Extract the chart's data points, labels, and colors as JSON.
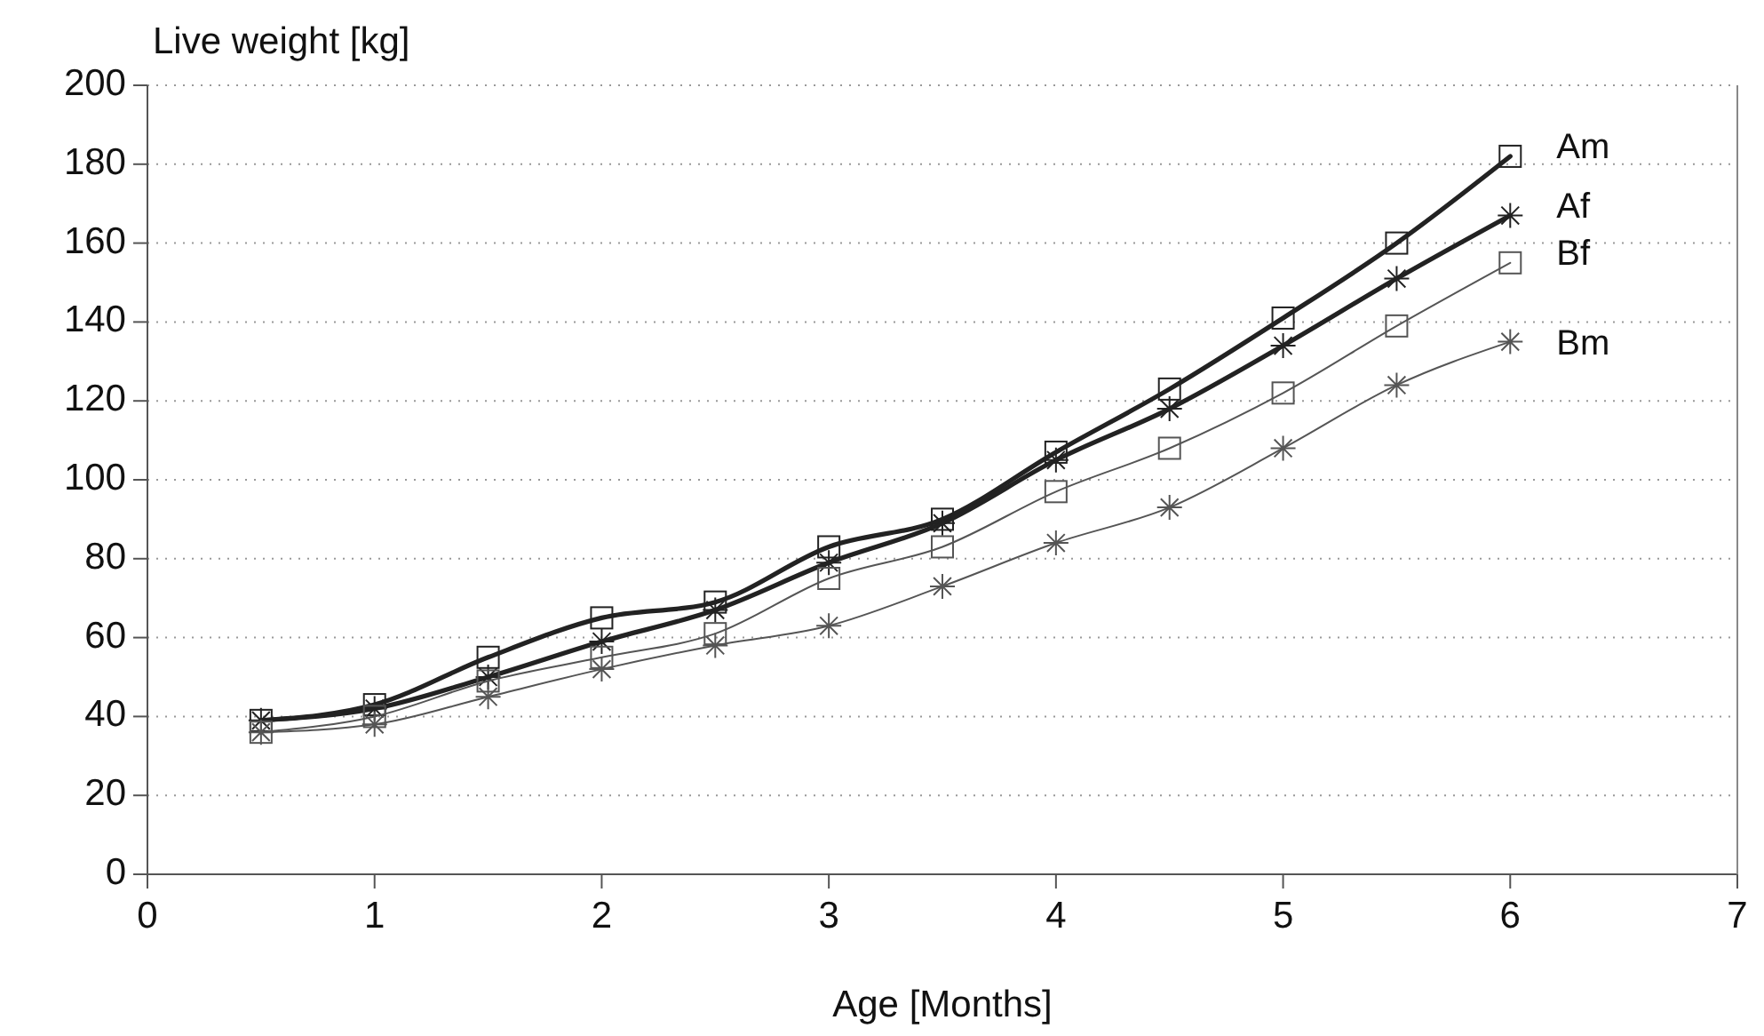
{
  "chart_data": {
    "type": "line",
    "xlabel": "Age [Months]",
    "ylabel": "Live weight [kg]",
    "x": [
      0.5,
      1,
      1.5,
      2,
      2.5,
      3,
      3.5,
      4,
      4.5,
      5,
      5.5,
      6
    ],
    "xlim": [
      0,
      7
    ],
    "xticks": [
      0,
      1,
      2,
      3,
      4,
      5,
      6,
      7
    ],
    "ylim": [
      0,
      200
    ],
    "yticks": [
      0,
      20,
      40,
      60,
      80,
      100,
      120,
      140,
      160,
      180,
      200
    ],
    "grid": "y",
    "legend": false,
    "line_style": "solid",
    "series": [
      {
        "name": "Am",
        "color": "#222222",
        "marker": "square",
        "values": [
          39,
          43,
          55,
          65,
          69,
          83,
          90,
          107,
          123,
          141,
          160,
          182
        ]
      },
      {
        "name": "Af",
        "color": "#222222",
        "marker": "cross",
        "values": [
          39,
          42,
          50,
          59,
          67,
          79,
          89,
          105,
          118,
          134,
          151,
          167
        ]
      },
      {
        "name": "Bf",
        "color": "#555555",
        "marker": "square",
        "values": [
          36,
          40,
          49,
          55,
          61,
          75,
          83,
          97,
          108,
          122,
          139,
          155
        ]
      },
      {
        "name": "Bm",
        "color": "#555555",
        "marker": "cross",
        "values": [
          36,
          38,
          45,
          52,
          58,
          63,
          73,
          84,
          93,
          108,
          124,
          135
        ]
      }
    ]
  }
}
